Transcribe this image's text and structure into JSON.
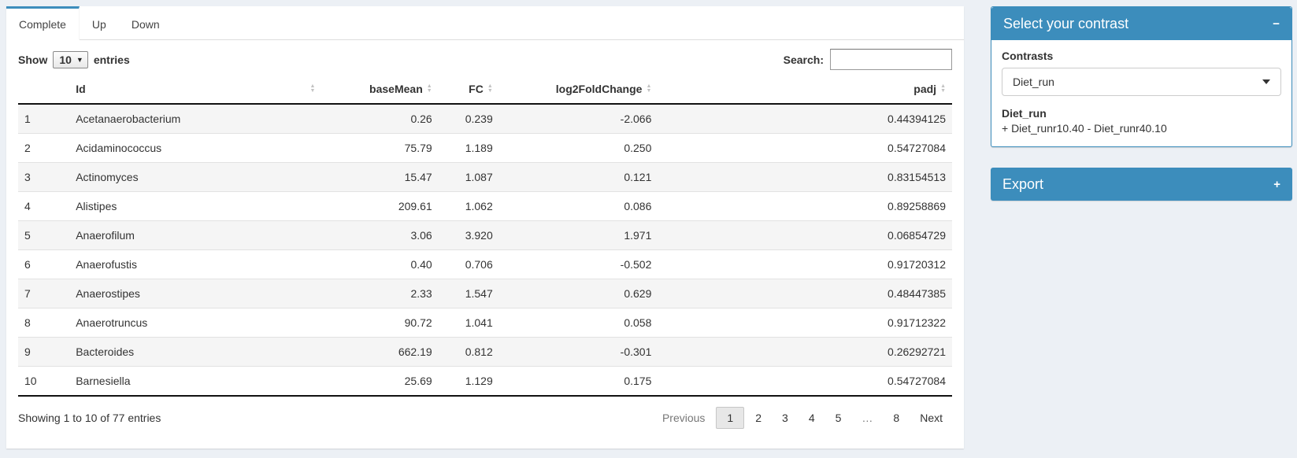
{
  "tabs": [
    {
      "label": "Complete",
      "active": true
    },
    {
      "label": "Up",
      "active": false
    },
    {
      "label": "Down",
      "active": false
    }
  ],
  "controls": {
    "show_label": "Show",
    "entries_label": "entries",
    "page_length": "10",
    "search_label": "Search:",
    "search_value": ""
  },
  "table": {
    "columns": [
      {
        "label": "",
        "align": "left",
        "sortable": false
      },
      {
        "label": "Id",
        "align": "left",
        "sortable": true
      },
      {
        "label": "baseMean",
        "align": "right",
        "sortable": true
      },
      {
        "label": "FC",
        "align": "right",
        "sortable": true
      },
      {
        "label": "log2FoldChange",
        "align": "right",
        "sortable": true
      },
      {
        "label": "padj",
        "align": "right",
        "sortable": true
      }
    ],
    "col_widths": [
      "5.5%",
      "27%",
      "12.5%",
      "6.5%",
      "17%",
      "31.5%"
    ],
    "rows": [
      [
        "1",
        "Acetanaerobacterium",
        "0.26",
        "0.239",
        "-2.066",
        "0.44394125"
      ],
      [
        "2",
        "Acidaminococcus",
        "75.79",
        "1.189",
        "0.250",
        "0.54727084"
      ],
      [
        "3",
        "Actinomyces",
        "15.47",
        "1.087",
        "0.121",
        "0.83154513"
      ],
      [
        "4",
        "Alistipes",
        "209.61",
        "1.062",
        "0.086",
        "0.89258869"
      ],
      [
        "5",
        "Anaerofilum",
        "3.06",
        "3.920",
        "1.971",
        "0.06854729"
      ],
      [
        "6",
        "Anaerofustis",
        "0.40",
        "0.706",
        "-0.502",
        "0.91720312"
      ],
      [
        "7",
        "Anaerostipes",
        "2.33",
        "1.547",
        "0.629",
        "0.48447385"
      ],
      [
        "8",
        "Anaerotruncus",
        "90.72",
        "1.041",
        "0.058",
        "0.91712322"
      ],
      [
        "9",
        "Bacteroides",
        "662.19",
        "0.812",
        "-0.301",
        "0.26292721"
      ],
      [
        "10",
        "Barnesiella",
        "25.69",
        "1.129",
        "0.175",
        "0.54727084"
      ]
    ],
    "info": "Showing 1 to 10 of 77 entries",
    "pagination": {
      "previous_label": "Previous",
      "pages": [
        "1",
        "2",
        "3",
        "4",
        "5",
        "…",
        "8"
      ],
      "current_page": "1",
      "next_label": "Next"
    }
  },
  "contrast_panel": {
    "title": "Select your contrast",
    "contrasts_label": "Contrasts",
    "selected_contrast": "Diet_run",
    "contrast_name": "Diet_run",
    "contrast_formula": "+ Diet_runr10.40 - Diet_runr40.10"
  },
  "export_panel": {
    "title": "Export"
  },
  "icons": {
    "collapse": "−",
    "expand": "+",
    "sort_asc": "▲",
    "sort_desc": "▼",
    "select_arrow": "▼"
  },
  "colors": {
    "primary": "#3c8dbc",
    "page_bg": "#ecf0f5"
  }
}
